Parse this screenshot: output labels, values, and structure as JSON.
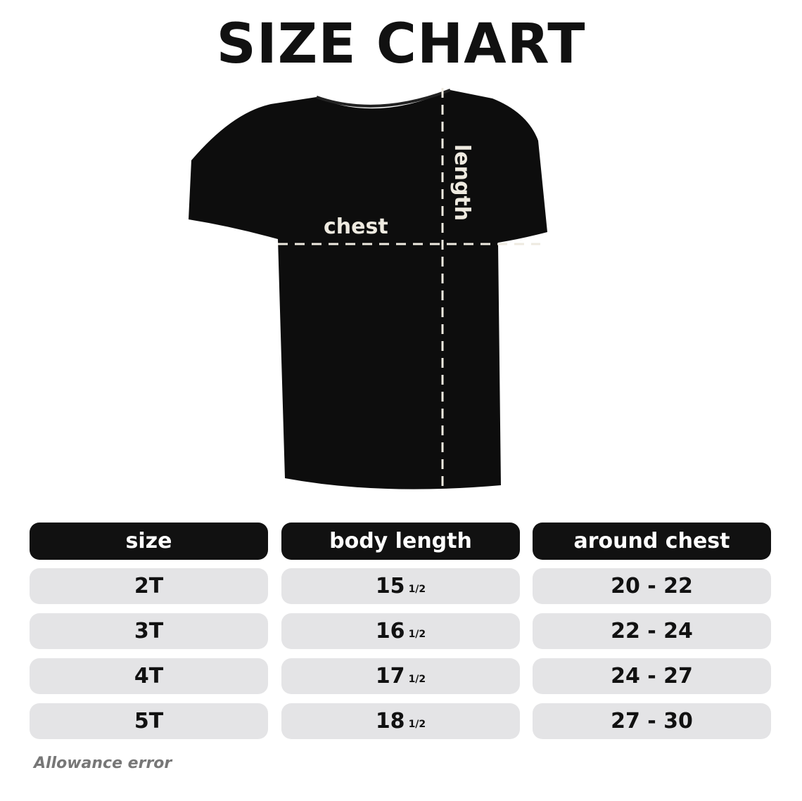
{
  "title": "SIZE CHART",
  "diagram": {
    "chest_label": "chest",
    "length_label": "length",
    "shirt_color": "#0d0d0d",
    "line_color": "#eeeae0"
  },
  "table": {
    "headers": [
      "size",
      "body length",
      "around chest"
    ],
    "rows": [
      {
        "size": "2T",
        "body_length": "15",
        "fraction": "1/2",
        "around_chest": "20 - 22"
      },
      {
        "size": "3T",
        "body_length": "16",
        "fraction": "1/2",
        "around_chest": "22 - 24"
      },
      {
        "size": "4T",
        "body_length": "17",
        "fraction": "1/2",
        "around_chest": "24 - 27"
      },
      {
        "size": "5T",
        "body_length": "18",
        "fraction": "1/2",
        "around_chest": "27 - 30"
      }
    ]
  },
  "note": "Allowance error"
}
